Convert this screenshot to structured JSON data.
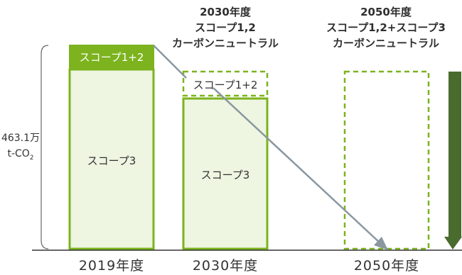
{
  "headers": {
    "y2030": [
      "2030年度",
      "スコープ1,2",
      "カーボンニュートラル"
    ],
    "y2050": [
      "2050年度",
      "スコープ1,2+スコープ3",
      "カーボンニュートラル"
    ]
  },
  "emission": {
    "value": "463.1万",
    "unit": "t-CO",
    "unit_sub": "2"
  },
  "bars": {
    "b2019_top": "スコープ1+2",
    "b2019_body": "スコープ3",
    "b2030_top": "スコープ1+2",
    "b2030_body": "スコープ3"
  },
  "years": [
    "2019年度",
    "2030年度",
    "2050年度"
  ],
  "colors": {
    "green_dark": "#7cb31e",
    "green_light": "#eef5e1",
    "arrow_gray": "#8a97a0",
    "arrow_green": "#4a6b2e"
  }
}
